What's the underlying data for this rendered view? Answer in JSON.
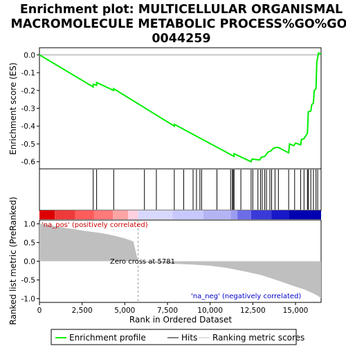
{
  "chart_data": {
    "type": "line",
    "title_lines": [
      "Enrichment plot: MULTICELLULAR ORGANISMAL",
      "MACROMOLECULE METABOLIC PROCESS%GO%GO:",
      "0044259"
    ],
    "es_panel": {
      "ylabel": "Enrichment score (ES)",
      "ylim": [
        -0.64,
        0.04
      ],
      "yticks": [
        "0.0",
        "-0.1",
        "-0.2",
        "-0.3",
        "-0.4",
        "-0.5",
        "-0.6"
      ],
      "ytick_values": [
        0.0,
        -0.1,
        -0.2,
        -0.3,
        -0.4,
        -0.5,
        -0.6
      ],
      "line_color": "#00ee00",
      "series": [
        {
          "name": "Enrichment profile",
          "x": [
            0,
            3150,
            3151,
            3350,
            3351,
            4350,
            4351,
            7900,
            7901,
            11400,
            11401,
            12400,
            12450,
            12900,
            13000,
            13200,
            13400,
            13550,
            13700,
            13850,
            14000,
            14600,
            14650,
            14900,
            15000,
            15300,
            15350,
            15500,
            15600,
            15700,
            15750,
            15900,
            15950,
            16050,
            16100,
            16200,
            16250,
            16350,
            16500
          ],
          "y": [
            0.0,
            -0.18,
            -0.165,
            -0.17,
            -0.155,
            -0.2,
            -0.19,
            -0.4,
            -0.39,
            -0.57,
            -0.555,
            -0.6,
            -0.585,
            -0.59,
            -0.575,
            -0.57,
            -0.545,
            -0.54,
            -0.525,
            -0.52,
            -0.52,
            -0.55,
            -0.5,
            -0.51,
            -0.495,
            -0.505,
            -0.475,
            -0.47,
            -0.455,
            -0.44,
            -0.32,
            -0.315,
            -0.28,
            -0.27,
            -0.2,
            -0.19,
            -0.04,
            0.01,
            0.005
          ]
        }
      ]
    },
    "hits": [
      3150,
      3350,
      4350,
      6150,
      6850,
      7900,
      8450,
      9000,
      9200,
      9400,
      9500,
      10400,
      11200,
      11300,
      11350,
      11400,
      11800,
      12400,
      12500,
      12800,
      12950,
      13050,
      13200,
      13300,
      13500,
      13600,
      13800,
      14000,
      14600,
      14950,
      15300,
      15500,
      15700,
      15750,
      15900,
      16050,
      16200,
      16300
    ],
    "ranked_panel": {
      "ylabel": "Ranked list metric (PreRanked)",
      "ylim": [
        -1.1,
        1.1
      ],
      "yticks": [
        "1.0",
        "0.5",
        "0.0",
        "-0.5",
        "-1.0"
      ],
      "ytick_values": [
        1.0,
        0.5,
        0.0,
        -0.5,
        -1.0
      ],
      "metric_x": [
        0,
        500,
        1000,
        1500,
        2000,
        2500,
        3000,
        3500,
        4000,
        4500,
        5000,
        5500,
        5781,
        6000,
        7000,
        8000,
        9000,
        10000,
        11000,
        12000,
        13000,
        14000,
        15000,
        15500,
        16000,
        16300,
        16500
      ],
      "metric_y": [
        1.0,
        0.97,
        0.93,
        0.89,
        0.86,
        0.82,
        0.79,
        0.76,
        0.72,
        0.67,
        0.61,
        0.53,
        0.0,
        -0.03,
        -0.05,
        -0.07,
        -0.09,
        -0.12,
        -0.18,
        -0.27,
        -0.37,
        -0.52,
        -0.68,
        -0.75,
        -0.85,
        -0.92,
        -0.99
      ],
      "zero_cross_label": "Zero cross at 5781",
      "zero_cross": 5781,
      "pos_label": "'na_pos' (positively correlated)",
      "neg_label": "'na_neg' (negatively correlated)"
    },
    "xlabel": "Rank in Ordered Dataset",
    "xlim": [
      0,
      16500
    ],
    "xticks": [
      "0",
      "2,500",
      "5,000",
      "7,500",
      "10,000",
      "12,500",
      "15,000"
    ],
    "xtick_values": [
      0,
      2500,
      5000,
      7500,
      10000,
      12500,
      15000
    ],
    "legend": {
      "placement": "bottom",
      "entries": [
        "Enrichment profile",
        "Hits",
        "Ranking metric scores"
      ]
    }
  }
}
